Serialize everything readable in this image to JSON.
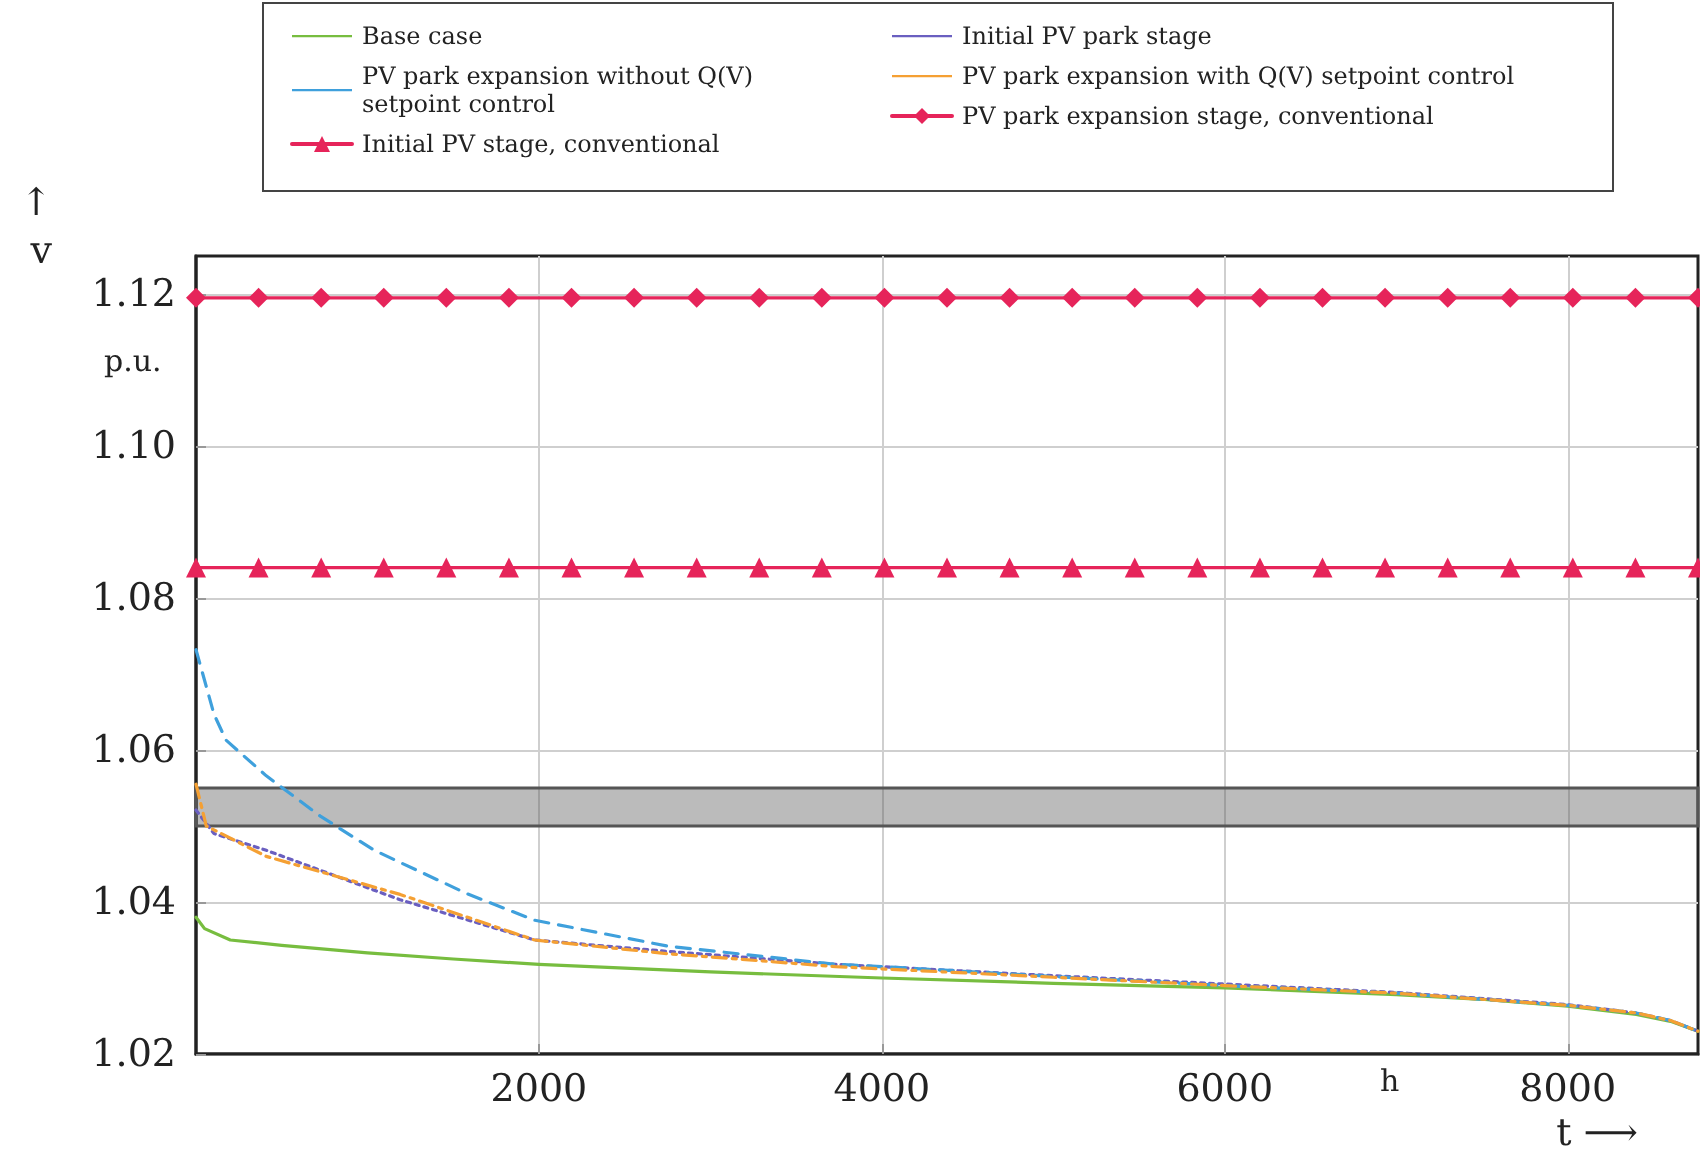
{
  "chart_data": {
    "type": "line",
    "xlabel": "t ⟶",
    "ylabel": "↑ v",
    "annotations": [
      "p.u.",
      "h"
    ],
    "xlim": [
      0,
      8760
    ],
    "xticks": [
      2000,
      4000,
      6000,
      8000
    ],
    "ylim": [
      1.02,
      1.125
    ],
    "yticks": [
      {
        "value": 1.02,
        "label": "1.02"
      },
      {
        "value": 1.04,
        "label": "1.04"
      },
      {
        "value": 1.06,
        "label": "1.06"
      },
      {
        "value": 1.08,
        "label": "1.08"
      },
      {
        "value": 1.1,
        "label": "1.10"
      },
      {
        "value": 1.12,
        "label": "1.12"
      }
    ],
    "grid": true,
    "legend": "top",
    "bands": [
      {
        "axis": "y",
        "from": 1.05,
        "to": 1.055,
        "color": "#555555"
      }
    ],
    "series": [
      {
        "name": "Base case",
        "color": "#77bd3f",
        "line_style": "solid",
        "marker": "none",
        "x": [
          0,
          50,
          200,
          500,
          1000,
          1500,
          2000,
          3000,
          4000,
          5000,
          6000,
          7000,
          7500,
          8000,
          8400,
          8600,
          8760
        ],
        "values": [
          1.038,
          1.0365,
          1.035,
          1.0343,
          1.0333,
          1.0325,
          1.0318,
          1.0308,
          1.03,
          1.0293,
          1.0287,
          1.0278,
          1.0272,
          1.0263,
          1.0252,
          1.0243,
          1.023
        ]
      },
      {
        "name": "Initial PV park stage",
        "color": "#6a5fc0",
        "line_style": "dotted",
        "marker": "none",
        "x": [
          0,
          105,
          410,
          1190,
          1975,
          2750,
          3730,
          5000,
          6000,
          7000,
          8000,
          8400,
          8600,
          8760
        ],
        "values": [
          1.0521,
          1.049,
          1.0468,
          1.0403,
          1.035,
          1.0335,
          1.0318,
          1.0303,
          1.0292,
          1.0281,
          1.0265,
          1.0254,
          1.0244,
          1.023
        ]
      },
      {
        "name": "PV park expansion without Q(V) setpoint control",
        "color": "#3fa0dc",
        "line_style": "dashed",
        "marker": "none",
        "x": [
          0,
          105,
          175,
          410,
          725,
          1040,
          1580,
          1975,
          2750,
          3730,
          4000,
          5000,
          6000,
          7000,
          8000,
          8400,
          8600,
          8760
        ],
        "values": [
          1.0732,
          1.0647,
          1.0613,
          1.0566,
          1.0513,
          1.0468,
          1.0411,
          1.0376,
          1.0342,
          1.0318,
          1.0315,
          1.0302,
          1.029,
          1.028,
          1.0264,
          1.0254,
          1.0244,
          1.023
        ]
      },
      {
        "name": "PV park expansion with Q(V) setpoint control",
        "color": "#f5a033",
        "line_style": "dashdot",
        "marker": "none",
        "x": [
          0,
          60,
          410,
          1190,
          1975,
          2750,
          3730,
          5000,
          6000,
          7000,
          8000,
          8400,
          8600,
          8760
        ],
        "values": [
          1.0555,
          1.05,
          1.046,
          1.041,
          1.035,
          1.0332,
          1.0315,
          1.0301,
          1.029,
          1.028,
          1.0264,
          1.0254,
          1.0244,
          1.023
        ]
      },
      {
        "name": "Initial PV stage, conventional",
        "color": "#e6245a",
        "line_style": "solid",
        "marker": "triangle",
        "x": [
          0,
          365,
          730,
          1095,
          1460,
          1825,
          2190,
          2555,
          2920,
          3285,
          3650,
          4015,
          4380,
          4745,
          5110,
          5475,
          5840,
          6205,
          6570,
          6935,
          7300,
          7665,
          8030,
          8395,
          8760
        ],
        "values": [
          1.084,
          1.084,
          1.084,
          1.084,
          1.084,
          1.084,
          1.084,
          1.084,
          1.084,
          1.084,
          1.084,
          1.084,
          1.084,
          1.084,
          1.084,
          1.084,
          1.084,
          1.084,
          1.084,
          1.084,
          1.084,
          1.084,
          1.084,
          1.084,
          1.084
        ]
      },
      {
        "name": "PV park expansion stage, conventional",
        "color": "#e6245a",
        "line_style": "solid",
        "marker": "diamond",
        "x": [
          0,
          365,
          730,
          1095,
          1460,
          1825,
          2190,
          2555,
          2920,
          3285,
          3650,
          4015,
          4380,
          4745,
          5110,
          5475,
          5840,
          6205,
          6570,
          6935,
          7300,
          7665,
          8030,
          8395,
          8760
        ],
        "values": [
          1.1195,
          1.1195,
          1.1195,
          1.1195,
          1.1195,
          1.1195,
          1.1195,
          1.1195,
          1.1195,
          1.1195,
          1.1195,
          1.1195,
          1.1195,
          1.1195,
          1.1195,
          1.1195,
          1.1195,
          1.1195,
          1.1195,
          1.1195,
          1.1195,
          1.1195,
          1.1195,
          1.1195,
          1.1195
        ]
      }
    ]
  }
}
